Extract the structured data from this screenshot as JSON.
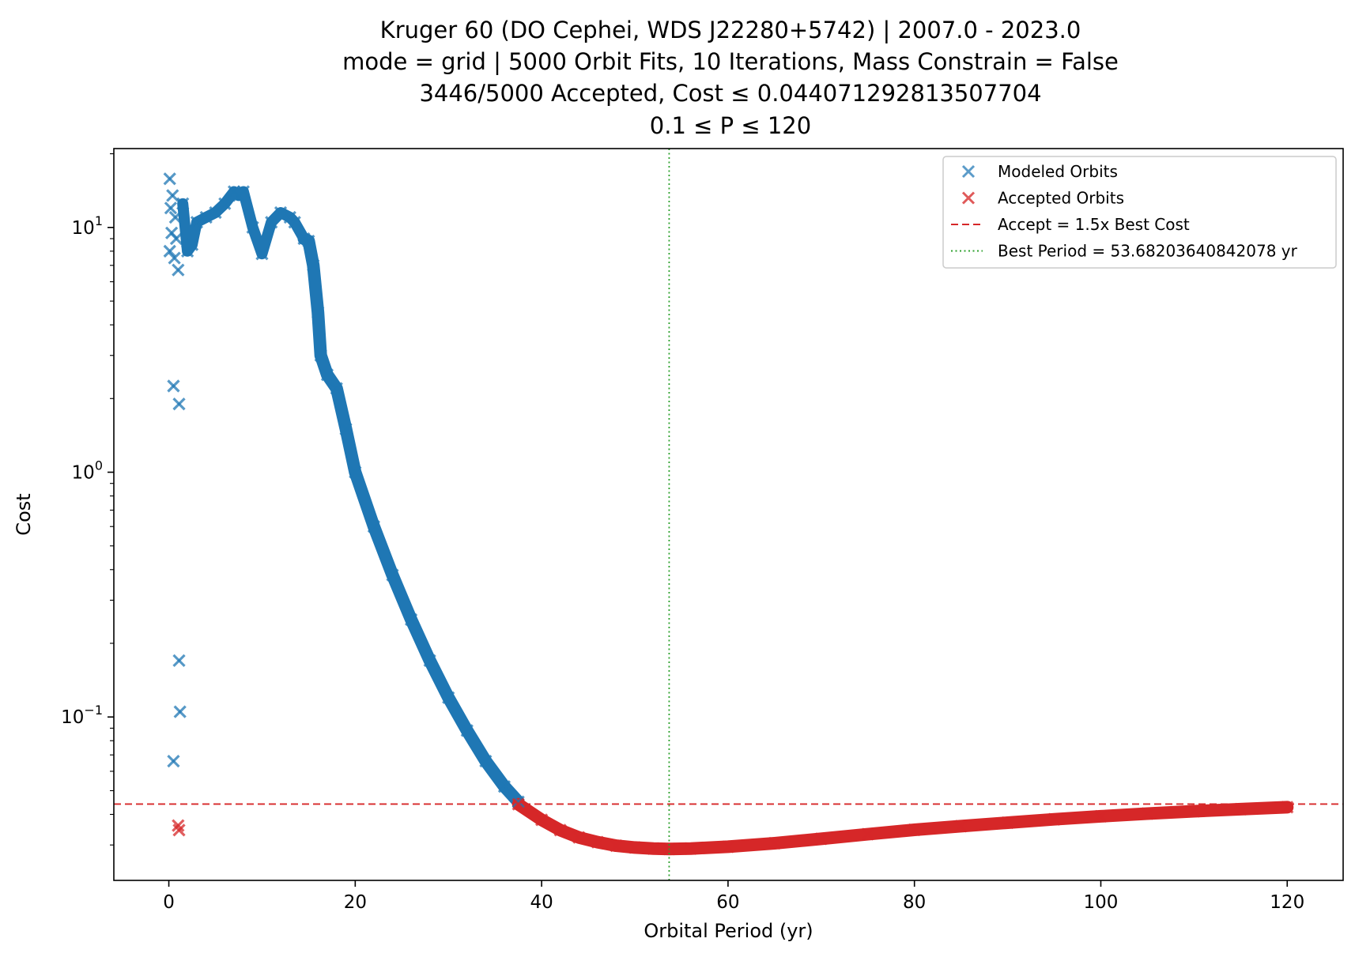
{
  "chart_data": {
    "type": "scatter",
    "title_lines": [
      "Kruger 60 (DO Cephei, WDS J22280+5742) | 2007.0 - 2023.0",
      "mode = grid | 5000 Orbit Fits, 10 Iterations, Mass Constrain = False",
      "3446/5000 Accepted, Cost ≤ 0.044071292813507704",
      "0.1 ≤ P ≤ 120"
    ],
    "xlabel": "Orbital Period (yr)",
    "ylabel": "Cost",
    "yscale": "log",
    "xlim": [
      -5.9,
      126.0
    ],
    "ylim": [
      0.0215,
      21.0
    ],
    "x_ticks": [
      0,
      20,
      40,
      60,
      80,
      100,
      120
    ],
    "x_tick_labels": [
      "0",
      "20",
      "40",
      "60",
      "80",
      "100",
      "120"
    ],
    "y_major_ticks": [
      0.1,
      1,
      10
    ],
    "y_tick_labels": [
      {
        "base": "10",
        "exp": "−1"
      },
      {
        "base": "10",
        "exp": "0"
      },
      {
        "base": "10",
        "exp": "1"
      }
    ],
    "accept_threshold": 0.044071292813507704,
    "best_period": 53.68203640842078,
    "legend": {
      "position": "upper right",
      "entries": [
        {
          "label": "Modeled Orbits",
          "marker": "x",
          "color": "#5b9bc9"
        },
        {
          "label": "Accepted Orbits",
          "marker": "x",
          "color": "#e05a5a"
        },
        {
          "label": "Accept = 1.5x Best Cost",
          "line": "dashed",
          "color": "#d62728"
        },
        {
          "label": "Best Period = 53.68203640842078 yr",
          "line": "dotted",
          "color": "#2ca02c"
        }
      ]
    },
    "series": [
      {
        "name": "Modeled Orbits",
        "color": "#1f77b4",
        "points": [
          [
            0.1,
            8.0
          ],
          [
            0.1,
            15.8
          ],
          [
            0.2,
            12.0
          ],
          [
            0.3,
            9.5
          ],
          [
            0.4,
            13.5
          ],
          [
            0.5,
            2.25
          ],
          [
            0.5,
            0.066
          ],
          [
            0.6,
            7.5
          ],
          [
            0.7,
            11.0
          ],
          [
            0.8,
            9.0
          ],
          [
            1.0,
            6.7
          ],
          [
            1.1,
            1.9
          ],
          [
            1.1,
            0.17
          ],
          [
            1.2,
            0.105
          ],
          [
            1.5,
            12.5
          ],
          [
            2.0,
            8.0
          ],
          [
            2.5,
            8.5
          ],
          [
            3.0,
            10.5
          ],
          [
            4.0,
            11.0
          ],
          [
            5.0,
            11.5
          ],
          [
            6.0,
            12.5
          ],
          [
            7.0,
            14.0
          ],
          [
            7.5,
            13.5
          ],
          [
            8.0,
            14.0
          ],
          [
            9.0,
            10.0
          ],
          [
            10.0,
            7.8
          ],
          [
            11.0,
            10.5
          ],
          [
            12.0,
            11.5
          ],
          [
            13.0,
            11.0
          ],
          [
            13.5,
            10.5
          ],
          [
            14.5,
            9.0
          ],
          [
            15.0,
            8.8
          ],
          [
            15.5,
            7.0
          ],
          [
            16.0,
            4.5
          ],
          [
            16.3,
            3.0
          ],
          [
            17.0,
            2.5
          ],
          [
            18.0,
            2.2
          ],
          [
            19.0,
            1.5
          ],
          [
            20.0,
            1.0
          ],
          [
            22.0,
            0.6
          ],
          [
            24.0,
            0.38
          ],
          [
            26.0,
            0.25
          ],
          [
            28.0,
            0.17
          ],
          [
            30.0,
            0.12
          ],
          [
            32.0,
            0.088
          ],
          [
            34.0,
            0.066
          ],
          [
            36.0,
            0.052
          ],
          [
            37.5,
            0.045
          ]
        ]
      },
      {
        "name": "Accepted Orbits",
        "color": "#d62728",
        "points": [
          [
            1.0,
            0.036
          ],
          [
            1.1,
            0.0345
          ],
          [
            37.5,
            0.044
          ],
          [
            40.0,
            0.038
          ],
          [
            42.0,
            0.0345
          ],
          [
            44.0,
            0.0322
          ],
          [
            46.0,
            0.0308
          ],
          [
            48.0,
            0.0298
          ],
          [
            50.0,
            0.0293
          ],
          [
            52.0,
            0.029
          ],
          [
            53.7,
            0.0289
          ],
          [
            56.0,
            0.029
          ],
          [
            60.0,
            0.0295
          ],
          [
            65.0,
            0.0305
          ],
          [
            70.0,
            0.0318
          ],
          [
            75.0,
            0.0332
          ],
          [
            80.0,
            0.0346
          ],
          [
            85.0,
            0.0358
          ],
          [
            90.0,
            0.037
          ],
          [
            95.0,
            0.0382
          ],
          [
            100.0,
            0.0393
          ],
          [
            105.0,
            0.0403
          ],
          [
            110.0,
            0.0412
          ],
          [
            115.0,
            0.042
          ],
          [
            120.0,
            0.0428
          ]
        ]
      }
    ]
  }
}
